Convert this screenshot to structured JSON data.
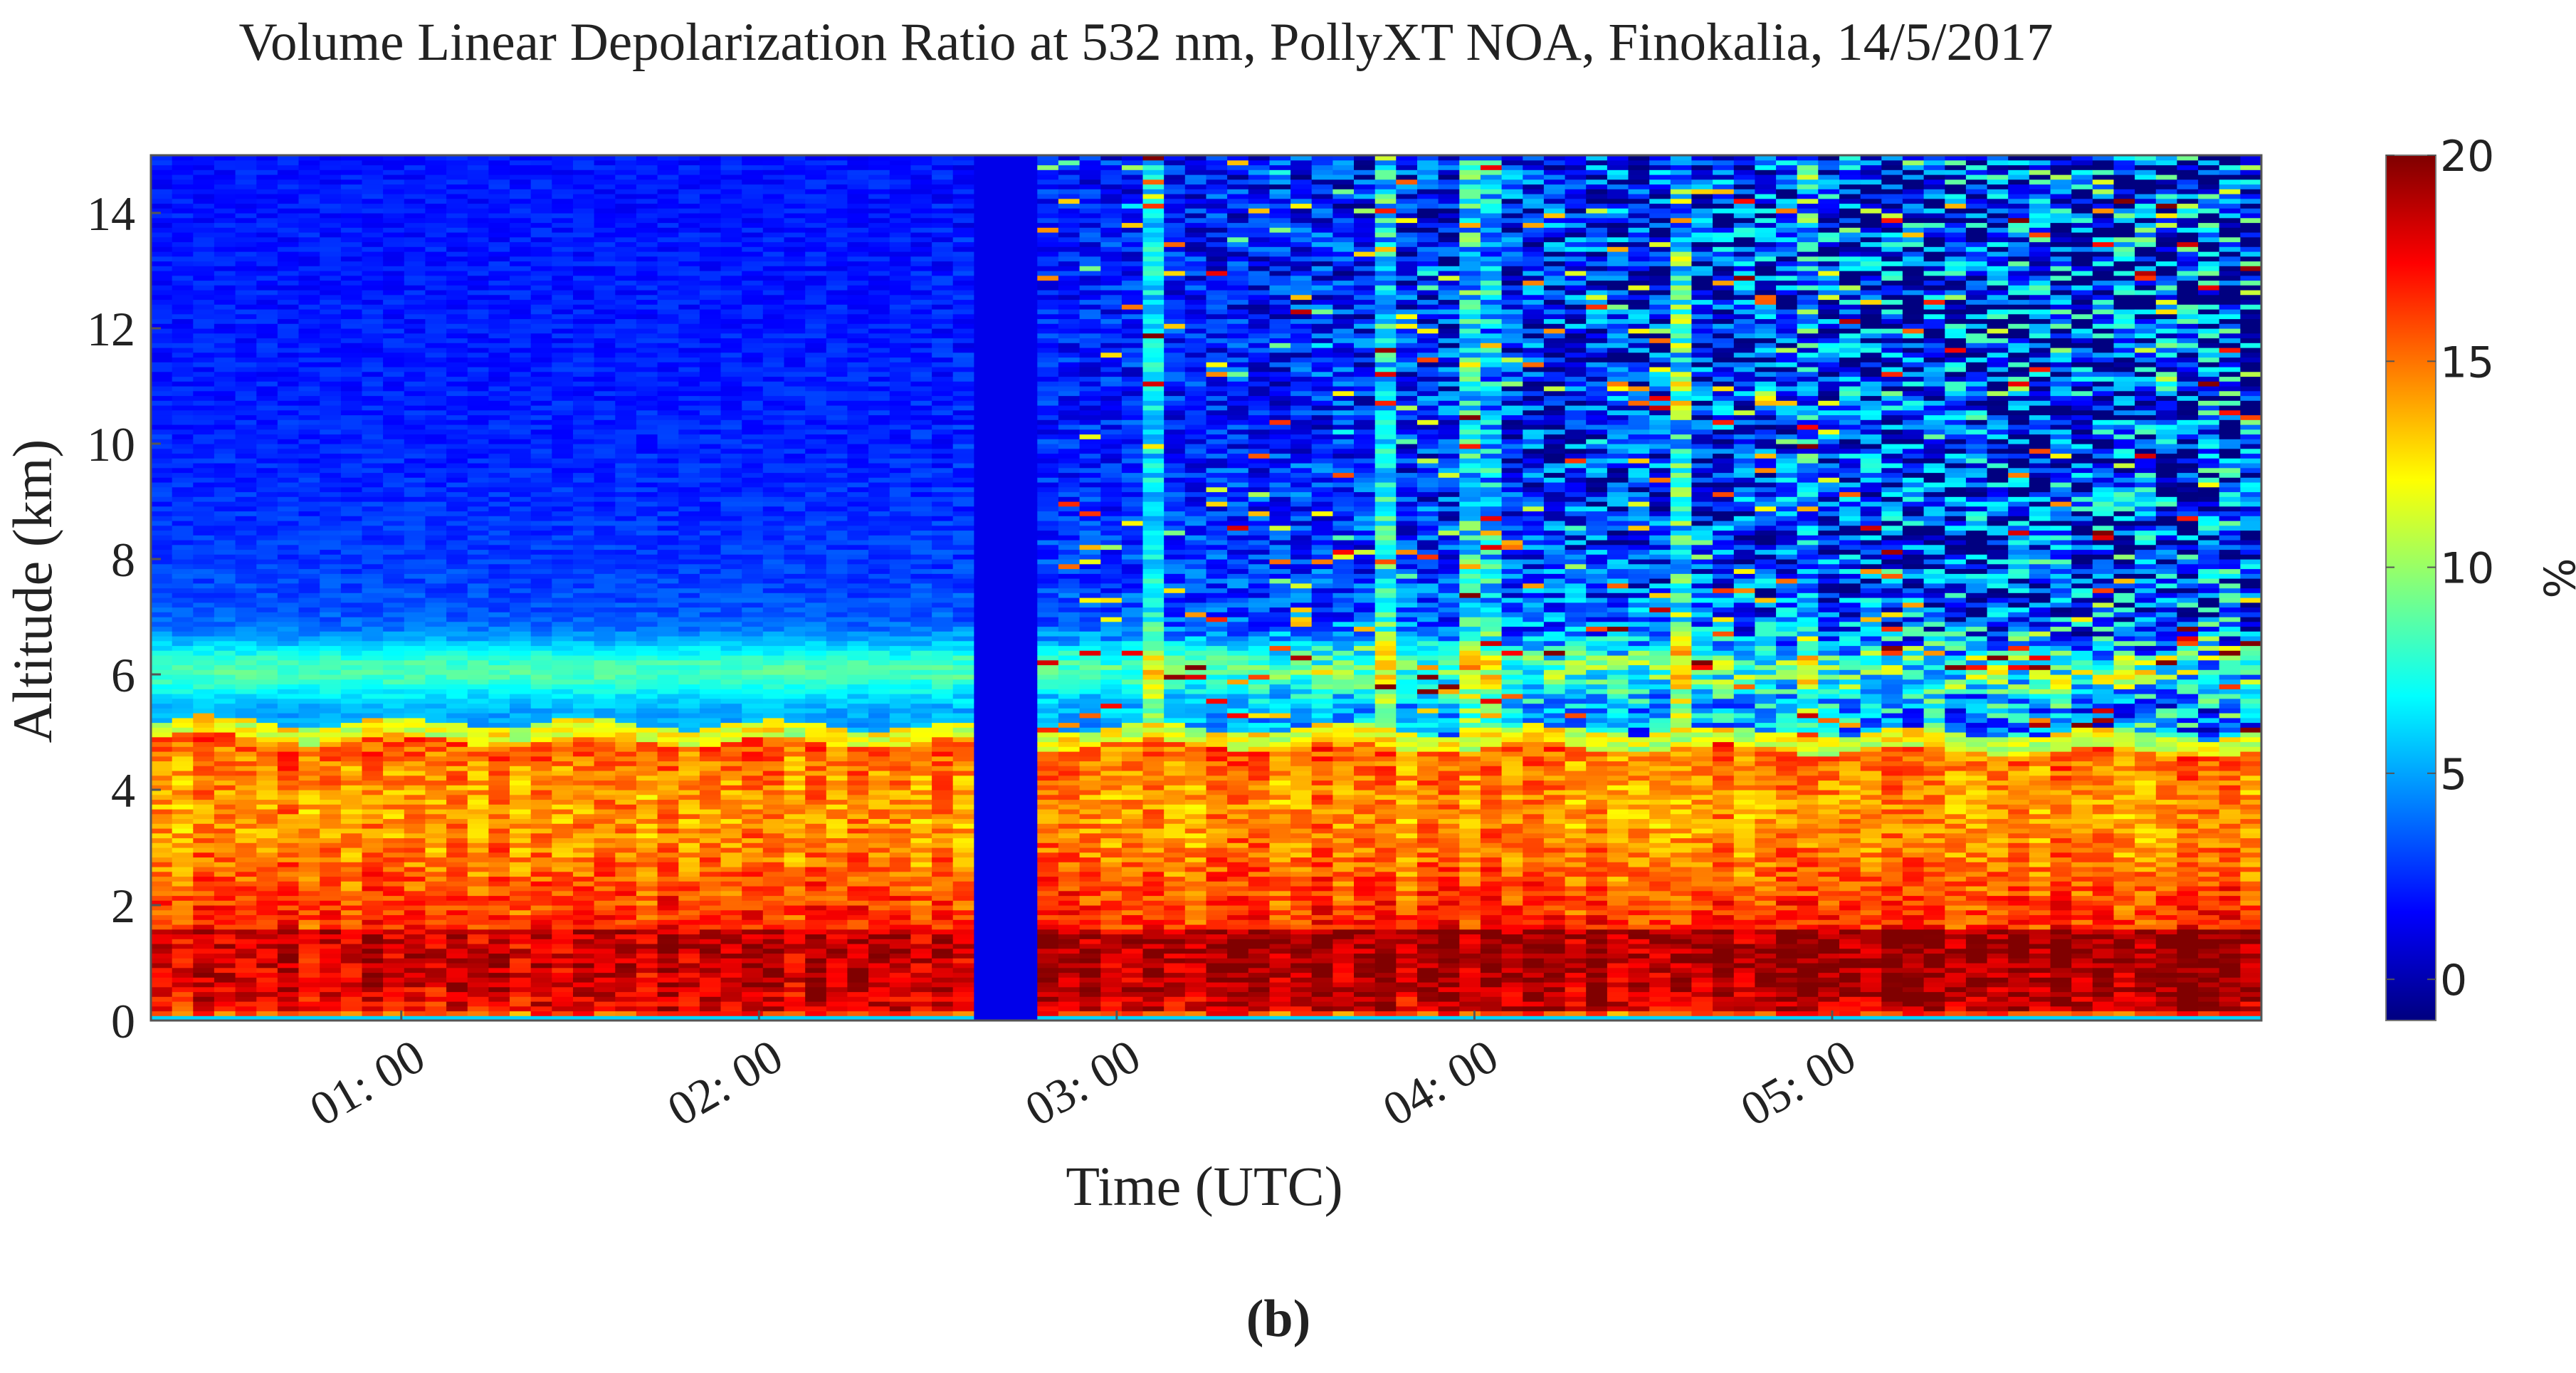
{
  "chart_data": {
    "type": "heatmap",
    "title": "Volume Linear Depolarization Ratio at 532 nm, PollyXT NOA, Finokalia, 14/5/2017",
    "xlabel": "Time (UTC)",
    "ylabel": "Altitude (km)",
    "x_range_hours": [
      0.3,
      6.2
    ],
    "ylim": [
      0,
      15
    ],
    "x_ticks": [
      {
        "value": 1,
        "label": "01: 00"
      },
      {
        "value": 2,
        "label": "02: 00"
      },
      {
        "value": 3,
        "label": "03: 00"
      },
      {
        "value": 4,
        "label": "04: 00"
      },
      {
        "value": 5,
        "label": "05: 00"
      }
    ],
    "y_ticks": [
      0,
      2,
      4,
      6,
      8,
      10,
      12,
      14
    ],
    "colorbar": {
      "label": "%",
      "range": [
        -1,
        20
      ],
      "ticks": [
        20,
        15,
        10,
        5,
        0
      ],
      "tick_labels": [
        "20",
        "15",
        "10",
        "5",
        "0"
      ],
      "colormap": "jet"
    },
    "features": {
      "aerosol_layer_top_km": 5.2,
      "aerosol_layer_depolarization_pct": [
        14,
        18
      ],
      "near_surface_max_depolarization_pct": 20,
      "data_gap_hours": [
        2.62,
        2.78
      ],
      "free_troposphere_depolarization_pct": [
        1,
        5
      ]
    },
    "caption": "(b)"
  }
}
